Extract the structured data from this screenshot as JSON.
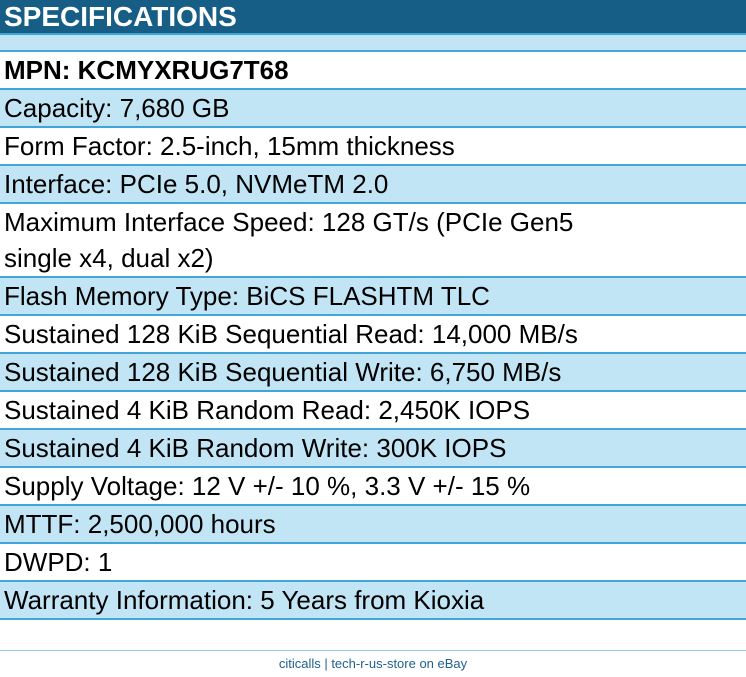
{
  "header": {
    "title": "SPECIFICATIONS"
  },
  "rows": [
    {
      "text": "MPN: KCMYXRUG7T68",
      "bold": true,
      "highlight": false
    },
    {
      "text": "Capacity: 7,680 GB",
      "bold": false,
      "highlight": true
    },
    {
      "text": "Form Factor: 2.5-inch, 15mm thickness",
      "bold": false,
      "highlight": false
    },
    {
      "text": "Interface: PCIe 5.0, NVMeTM 2.0",
      "bold": false,
      "highlight": true
    },
    {
      "text": "Maximum Interface Speed: 128 GT/s (PCIe Gen5\nsingle x4, dual x2)",
      "bold": false,
      "highlight": false
    },
    {
      "text": "Flash Memory Type: BiCS FLASHTM TLC",
      "bold": false,
      "highlight": true
    },
    {
      "text": "Sustained 128 KiB Sequential Read: 14,000 MB/s",
      "bold": false,
      "highlight": false
    },
    {
      "text": "Sustained 128 KiB Sequential Write: 6,750 MB/s",
      "bold": false,
      "highlight": true
    },
    {
      "text": "Sustained 4 KiB Random Read: 2,450K IOPS",
      "bold": false,
      "highlight": false
    },
    {
      "text": "Sustained 4 KiB Random Write: 300K IOPS",
      "bold": false,
      "highlight": true
    },
    {
      "text": "Supply Voltage: 12 V +/- 10 %, 3.3 V +/- 15 %",
      "bold": false,
      "highlight": false
    },
    {
      "text": "MTTF: 2,500,000 hours",
      "bold": false,
      "highlight": true
    },
    {
      "text": "DWPD: 1",
      "bold": false,
      "highlight": false
    },
    {
      "text": "Warranty Information: 5 Years from Kioxia",
      "bold": false,
      "highlight": true
    }
  ],
  "footer": {
    "text": "citicalls | tech-r-us-store on eBay"
  },
  "colors": {
    "header_bg": "#165E86",
    "header_text": "#FFFFFF",
    "row_highlight_bg": "#C2E5F5",
    "row_border": "#40A6DA",
    "row_text": "#000000",
    "footer_divider": "#8FCBE8",
    "footer_text": "#1F618F"
  }
}
